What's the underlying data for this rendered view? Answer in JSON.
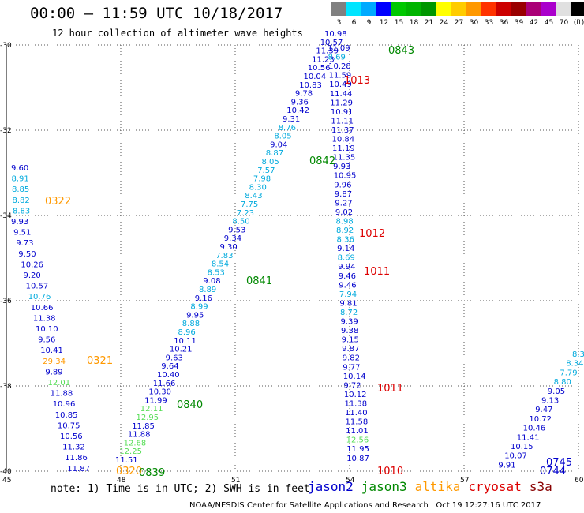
{
  "header": {
    "title": "00:00 – 11:59 UTC 10/18/2017",
    "subtitle": "12 hour collection of altimeter wave heights"
  },
  "colorbar": {
    "unit": "(ft)",
    "colors": [
      "#808080",
      "#00e5ff",
      "#00aaff",
      "#0000ff",
      "#00c800",
      "#00b400",
      "#009600",
      "#ffff00",
      "#ffcc00",
      "#ff9900",
      "#ff3300",
      "#cc0000",
      "#990000",
      "#aa0077",
      "#aa00cc",
      "#e0e0e0",
      "#000000"
    ],
    "labels": [
      "3",
      "6",
      "9",
      "12",
      "15",
      "18",
      "21",
      "24",
      "27",
      "30",
      "33",
      "36",
      "39",
      "42",
      "45",
      "70",
      "(ft)"
    ]
  },
  "chart_data": {
    "type": "map",
    "x_axis": {
      "ticks": [
        "45",
        "48",
        "51",
        "54",
        "57",
        "60"
      ],
      "range": [
        45,
        60
      ]
    },
    "y_axis": {
      "ticks": [
        "-30",
        "-32",
        "-34",
        "-36",
        "-38",
        "-40"
      ],
      "range": [
        -40,
        -30
      ]
    },
    "grid": "dotted",
    "satellite_colors": {
      "jason2": "#0000cc",
      "jason3": "#008800",
      "altika": "#ff9900",
      "cryosat": "#dd0000",
      "s3a": "#880000",
      "fill": "#00aadd",
      "light": "#55dd55"
    },
    "passes": [
      {
        "id": "0322",
        "lon": 45.2,
        "lat_start": -32.8,
        "lat_step": -0.2,
        "color": "jason2",
        "values": [
          "9.60",
          "8.91",
          "8.85",
          "8.82",
          "8.83",
          "9.93",
          "9.51",
          "9.73",
          "9.50",
          "10.26",
          "9.20",
          "10.57",
          "10.76",
          "10.66",
          "11.38",
          "10.10",
          "9.56",
          "10.41",
          "29.34",
          "9.89",
          "12.01",
          "11.88",
          "10.96",
          "10.85",
          "10.75",
          "10.56",
          "11.32",
          "11.86",
          "11.87"
        ],
        "value_colors": [
          "jason2",
          "fill",
          "fill",
          "fill",
          "fill",
          "jason2",
          "jason2",
          "jason2",
          "jason2",
          "jason2",
          "jason2",
          "jason2",
          "fill",
          "jason2",
          "jason2",
          "jason2",
          "jason2",
          "jason2",
          "altika",
          "jason2",
          "light",
          "jason2",
          "jason2",
          "jason2",
          "jason2",
          "jason2",
          "jason2",
          "jason2",
          "jason2"
        ]
      },
      {
        "id": "0840",
        "lon": 48.0,
        "lat_start": -39.9,
        "color": "jason2",
        "values": [
          "11.51",
          "12.25",
          "12.68",
          "11.88",
          "11.85",
          "12.95",
          "12.11",
          "11.99",
          "10.30",
          "11.66",
          "10.40",
          "9.64",
          "9.63",
          "10.21",
          "10.11",
          "8.96",
          "8.88",
          "9.95",
          "8.99",
          "9.16",
          "8.89",
          "9.08",
          "8.53",
          "8.54",
          "7.83",
          "9.30",
          "9.34",
          "9.53",
          "8.50",
          "7.23",
          "7.75",
          "8.43",
          "8.30",
          "7.98",
          "7.57",
          "8.05",
          "8.87",
          "9.04",
          "8.05",
          "8.76",
          "9.31",
          "10.42",
          "9.36",
          "9.78",
          "10.83",
          "10.04",
          "10.56",
          "11.23",
          "11.39",
          "10.57",
          "10.98"
        ],
        "value_colors": [
          "jason2",
          "light",
          "light",
          "jason2",
          "jason2",
          "light",
          "light",
          "jason2",
          "jason2",
          "jason2",
          "jason2",
          "jason2",
          "jason2",
          "jason2",
          "jason2",
          "fill",
          "fill",
          "jason2",
          "fill",
          "jason2",
          "fill",
          "jason2",
          "fill",
          "fill",
          "fill",
          "jason2",
          "jason2",
          "jason2",
          "fill",
          "fill",
          "fill",
          "fill",
          "fill",
          "fill",
          "fill",
          "fill",
          "fill",
          "jason2",
          "fill",
          "fill",
          "jason2",
          "jason2",
          "jason2",
          "jason2",
          "jason2",
          "jason2",
          "jason2",
          "jason2",
          "jason2",
          "jason2",
          "jason2"
        ]
      },
      {
        "id": "1013",
        "lon": 54.0,
        "lat_start": -30.1,
        "color": "jason2",
        "values": [
          "11.09",
          "8.69",
          "10.28",
          "11.59",
          "10.49",
          "11.44",
          "11.29",
          "10.91",
          "11.11",
          "11.37",
          "10.84",
          "11.19",
          "11.35",
          "9.93",
          "10.95",
          "9.96",
          "9.87",
          "9.27",
          "9.02",
          "8.98",
          "8.92",
          "8.36",
          "9.14",
          "8.69",
          "9.94",
          "9.46",
          "9.46",
          "7.94",
          "9.81",
          "8.72",
          "9.39",
          "9.38",
          "9.15",
          "9.87",
          "9.82",
          "9.77",
          "10.14",
          "9.72",
          "10.12",
          "11.38",
          "11.40",
          "11.58",
          "11.01",
          "12.56",
          "11.95",
          "10.87"
        ],
        "value_colors": [
          "jason2",
          "fill",
          "jason2",
          "jason2",
          "jason2",
          "jason2",
          "jason2",
          "jason2",
          "jason2",
          "jason2",
          "jason2",
          "jason2",
          "jason2",
          "jason2",
          "jason2",
          "jason2",
          "jason2",
          "jason2",
          "jason2",
          "fill",
          "fill",
          "fill",
          "jason2",
          "fill",
          "jason2",
          "jason2",
          "jason2",
          "fill",
          "jason2",
          "fill",
          "jason2",
          "jason2",
          "jason2",
          "jason2",
          "jason2",
          "jason2",
          "jason2",
          "jason2",
          "jason2",
          "jason2",
          "jason2",
          "jason2",
          "jason2",
          "light",
          "jason2",
          "jason2"
        ]
      },
      {
        "id": "0745",
        "lon": 59.5,
        "lat_start": -37.6,
        "color": "jason2",
        "values": [
          "8.3",
          "8.34",
          "7.79",
          "8.80",
          "9.05",
          "9.13",
          "9.47",
          "10.72",
          "10.46",
          "11.41",
          "10.15",
          "10.07",
          "9.91"
        ],
        "value_colors": [
          "fill",
          "fill",
          "fill",
          "fill",
          "jason2",
          "jason2",
          "jason2",
          "jason2",
          "jason2",
          "jason2",
          "jason2",
          "jason2",
          "jason2"
        ]
      }
    ],
    "labels": [
      {
        "text": "0843",
        "color": "jason3"
      },
      {
        "text": "1013",
        "color": "cryosat"
      },
      {
        "text": "0842",
        "color": "jason3"
      },
      {
        "text": "0322",
        "color": "altika"
      },
      {
        "text": "1012",
        "color": "cryosat"
      },
      {
        "text": "0841",
        "color": "jason3"
      },
      {
        "text": "1011",
        "color": "cryosat"
      },
      {
        "text": "0321",
        "color": "altika"
      },
      {
        "text": "1011",
        "color": "cryosat"
      },
      {
        "text": "0840",
        "color": "jason3"
      },
      {
        "text": "0320",
        "color": "altika"
      },
      {
        "text": "0839",
        "color": "jason3"
      },
      {
        "text": "1010",
        "color": "cryosat"
      },
      {
        "text": "0745",
        "color": "jason2"
      },
      {
        "text": "0744",
        "color": "jason2"
      }
    ]
  },
  "footer": {
    "note": "note: 1) Time is in UTC; 2) SWH is in feet",
    "legend": [
      {
        "name": "jason2",
        "color": "#0000cc"
      },
      {
        "name": "jason3",
        "color": "#008800"
      },
      {
        "name": "altika",
        "color": "#ff9900"
      },
      {
        "name": "cryosat",
        "color": "#dd0000"
      },
      {
        "name": "s3a",
        "color": "#880000"
      }
    ],
    "credit": "NOAA/NESDIS Center for Satellite Applications and Research   Oct 19 12:27:16 UTC 2017"
  }
}
